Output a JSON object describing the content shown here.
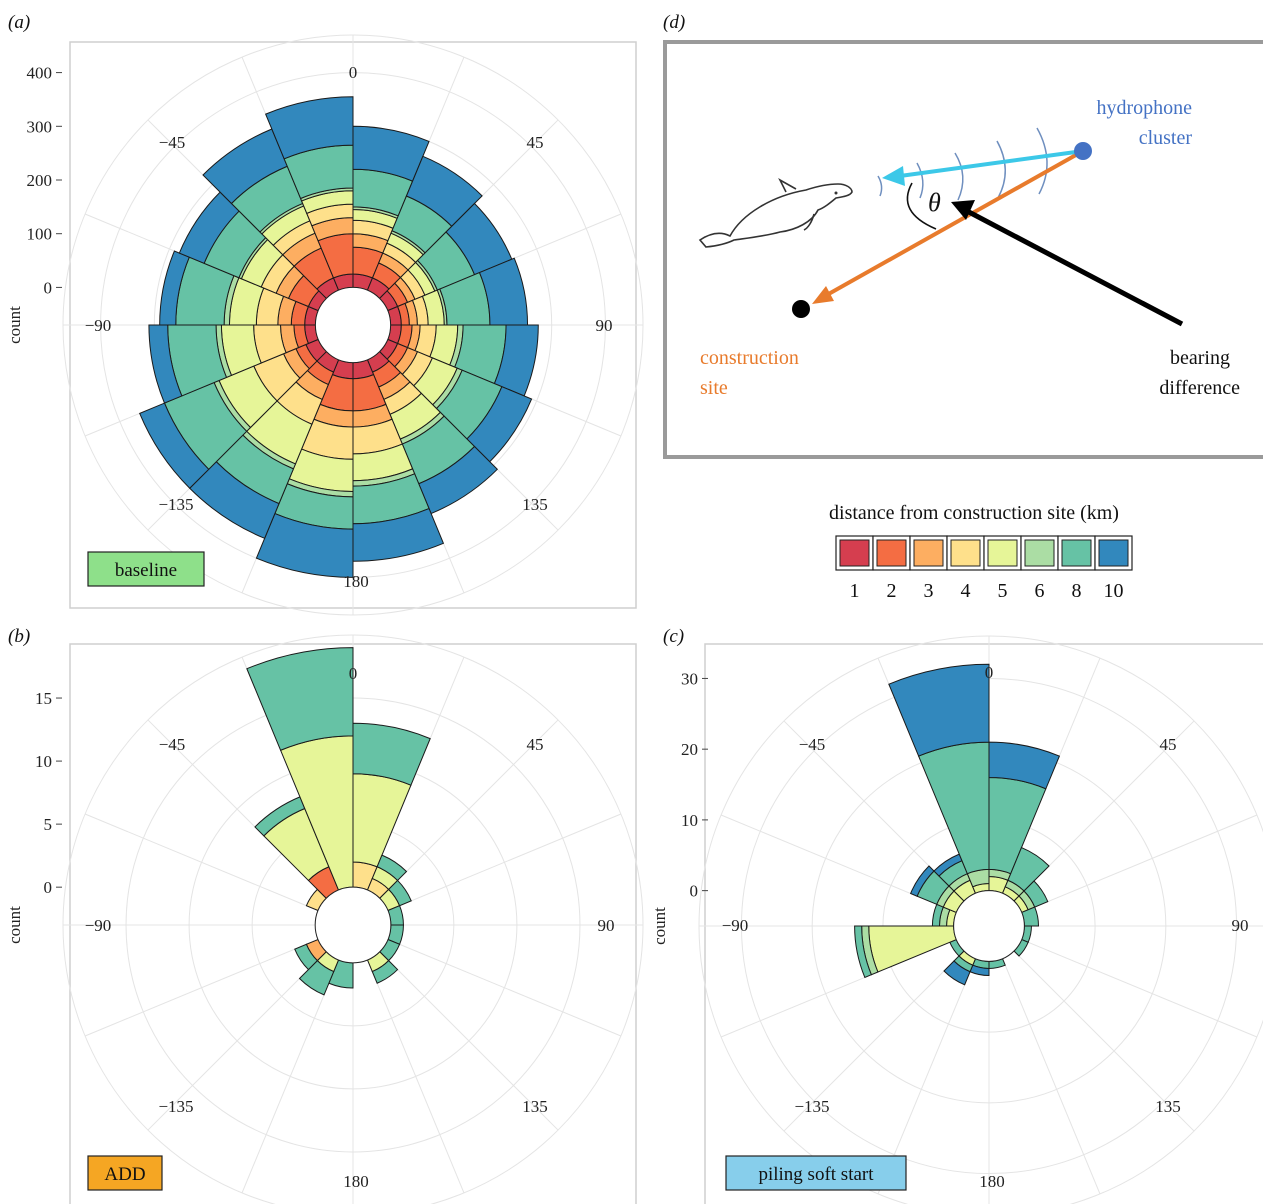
{
  "panel_labels": {
    "a": "(a)",
    "b": "(b)",
    "c": "(c)",
    "d": "(d)"
  },
  "y_axis_label": "count",
  "angle_labels": [
    "0",
    "45",
    "90",
    "135",
    "180",
    "−135",
    "−90",
    "−45"
  ],
  "legend": {
    "title": "distance from construction site (km)",
    "items": [
      {
        "label": "1",
        "color": "#d53e4f"
      },
      {
        "label": "2",
        "color": "#f46d43"
      },
      {
        "label": "3",
        "color": "#fdae61"
      },
      {
        "label": "4",
        "color": "#fee08b"
      },
      {
        "label": "5",
        "color": "#e6f598"
      },
      {
        "label": "6",
        "color": "#abdda4"
      },
      {
        "label": "8",
        "color": "#66c2a5"
      },
      {
        "label": "10",
        "color": "#3288bd"
      }
    ]
  },
  "diagram": {
    "hydrophone_label_1": "hydrophone",
    "hydrophone_label_2": "cluster",
    "site_label_1": "construction",
    "site_label_2": "site",
    "bearing_label_1": "bearing",
    "bearing_label_2": "difference",
    "theta": "θ",
    "colors": {
      "hydrophone": "#4472c4",
      "site_arrow": "#e87b2c",
      "porpoise_arrow": "#3cc8e8",
      "bearing_arrow": "#000000"
    }
  },
  "chart_data": [
    {
      "id": "a",
      "type": "polar-stacked-bar",
      "condition": "baseline",
      "condition_color": "#8ee08a",
      "ylabel": "count",
      "yticks": [
        0,
        100,
        200,
        300,
        400
      ],
      "r_min": -70,
      "r_max": 470,
      "bin_width_deg": 22.5,
      "bins_deg": [
        11.25,
        33.75,
        56.25,
        78.75,
        101.25,
        123.75,
        146.25,
        168.75,
        -168.75,
        -146.25,
        -123.75,
        -101.25,
        -78.75,
        -56.25,
        -33.75,
        -11.25
      ],
      "series": [
        {
          "name": "1",
          "values": [
            25,
            25,
            20,
            20,
            20,
            20,
            25,
            30,
            30,
            25,
            25,
            20,
            20,
            20,
            25,
            25
          ]
        },
        {
          "name": "2",
          "values": [
            50,
            30,
            20,
            15,
            20,
            20,
            30,
            60,
            60,
            25,
            20,
            20,
            25,
            40,
            60,
            75
          ]
        },
        {
          "name": "3",
          "values": [
            25,
            20,
            15,
            15,
            15,
            20,
            25,
            30,
            30,
            30,
            25,
            25,
            25,
            25,
            30,
            30
          ]
        },
        {
          "name": "4",
          "values": [
            25,
            20,
            20,
            20,
            30,
            30,
            30,
            50,
            60,
            50,
            60,
            50,
            40,
            30,
            25,
            25
          ]
        },
        {
          "name": "5",
          "values": [
            20,
            20,
            20,
            30,
            40,
            50,
            50,
            50,
            60,
            80,
            70,
            60,
            50,
            40,
            30,
            25
          ]
        },
        {
          "name": "6",
          "values": [
            5,
            5,
            5,
            5,
            10,
            10,
            10,
            10,
            10,
            10,
            10,
            10,
            10,
            5,
            5,
            5
          ]
        },
        {
          "name": "8",
          "values": [
            70,
            70,
            75,
            80,
            80,
            80,
            80,
            70,
            60,
            70,
            100,
            90,
            90,
            70,
            75,
            80
          ]
        },
        {
          "name": "10",
          "values": [
            80,
            80,
            75,
            70,
            60,
            60,
            60,
            70,
            90,
            70,
            50,
            35,
            30,
            50,
            75,
            90
          ]
        }
      ]
    },
    {
      "id": "b",
      "type": "polar-stacked-bar",
      "condition": "ADD",
      "condition_color": "#f5a623",
      "ylabel": "count",
      "yticks": [
        0,
        5,
        10,
        15
      ],
      "r_min": -3,
      "r_max": 20,
      "bin_width_deg": 22.5,
      "bins_deg": [
        11.25,
        33.75,
        56.25,
        78.75,
        101.25,
        123.75,
        146.25,
        168.75,
        -168.75,
        -146.25,
        -123.75,
        -101.25,
        -78.75,
        -56.25,
        -33.75,
        -11.25
      ],
      "series": [
        {
          "name": "1",
          "values": [
            0,
            0,
            0,
            0,
            0,
            0,
            0,
            0,
            0,
            0,
            0,
            0,
            0,
            0,
            0,
            0
          ]
        },
        {
          "name": "2",
          "values": [
            0,
            0,
            0,
            0,
            0,
            0,
            0,
            0,
            0,
            0,
            0,
            0,
            0,
            0,
            2,
            0
          ]
        },
        {
          "name": "3",
          "values": [
            0,
            0,
            0,
            0,
            0,
            0,
            0,
            0,
            0,
            0,
            1,
            0,
            0,
            0,
            0,
            0
          ]
        },
        {
          "name": "4",
          "values": [
            2,
            1,
            0,
            0,
            0,
            0,
            0,
            0,
            0,
            0,
            0,
            0,
            0,
            1,
            0,
            0
          ]
        },
        {
          "name": "5",
          "values": [
            7,
            1,
            1,
            0,
            0,
            0,
            1,
            0,
            0,
            1,
            0,
            0,
            0,
            0,
            5,
            12
          ]
        },
        {
          "name": "6",
          "values": [
            0,
            0,
            0,
            0,
            0,
            0,
            0,
            0,
            0,
            0,
            0,
            0,
            0,
            0,
            0,
            0
          ]
        },
        {
          "name": "8",
          "values": [
            4,
            1,
            1,
            1,
            1,
            1,
            1,
            0,
            2,
            2,
            1,
            0,
            0,
            0,
            1,
            7
          ]
        },
        {
          "name": "10",
          "values": [
            0,
            0,
            0,
            0,
            0,
            0,
            0,
            0,
            0,
            0,
            0,
            0,
            0,
            0,
            0,
            0
          ]
        }
      ]
    },
    {
      "id": "c",
      "type": "polar-stacked-bar",
      "condition": "piling soft start",
      "condition_color": "#87ceeb",
      "ylabel": "count",
      "yticks": [
        0,
        10,
        20,
        30
      ],
      "r_min": -5,
      "r_max": 36,
      "bin_width_deg": 22.5,
      "bins_deg": [
        11.25,
        33.75,
        56.25,
        78.75,
        101.25,
        123.75,
        146.25,
        168.75,
        -168.75,
        -146.25,
        -123.75,
        -101.25,
        -78.75,
        -56.25,
        -33.75,
        -11.25
      ],
      "series": [
        {
          "name": "1",
          "values": [
            0,
            0,
            0,
            0,
            0,
            0,
            0,
            0,
            0,
            0,
            0,
            0,
            0,
            0,
            0,
            0
          ]
        },
        {
          "name": "2",
          "values": [
            0,
            0,
            0,
            0,
            0,
            0,
            0,
            0,
            0,
            0,
            0,
            0,
            0,
            0,
            0,
            0
          ]
        },
        {
          "name": "3",
          "values": [
            0,
            0,
            0,
            0,
            0,
            0,
            0,
            0,
            0,
            0,
            0,
            0,
            0,
            0,
            0,
            0
          ]
        },
        {
          "name": "4",
          "values": [
            0,
            0,
            0,
            0,
            0,
            0,
            0,
            0,
            0,
            0,
            0,
            0,
            0,
            0,
            0,
            0
          ]
        },
        {
          "name": "5",
          "values": [
            2,
            1,
            1,
            0,
            0,
            0,
            0,
            0,
            0,
            1,
            0,
            12,
            1,
            2,
            2,
            1
          ]
        },
        {
          "name": "6",
          "values": [
            1,
            1,
            1,
            0,
            0,
            0,
            0,
            0,
            0,
            0,
            0,
            1,
            1,
            1,
            1,
            2
          ]
        },
        {
          "name": "8",
          "values": [
            13,
            5,
            2,
            2,
            1,
            1,
            0,
            1,
            1,
            1,
            1,
            1,
            1,
            3,
            2,
            18
          ]
        },
        {
          "name": "10",
          "values": [
            5,
            0,
            0,
            0,
            0,
            0,
            0,
            0,
            1,
            2,
            0,
            0,
            0,
            1,
            1,
            11
          ]
        }
      ]
    }
  ]
}
